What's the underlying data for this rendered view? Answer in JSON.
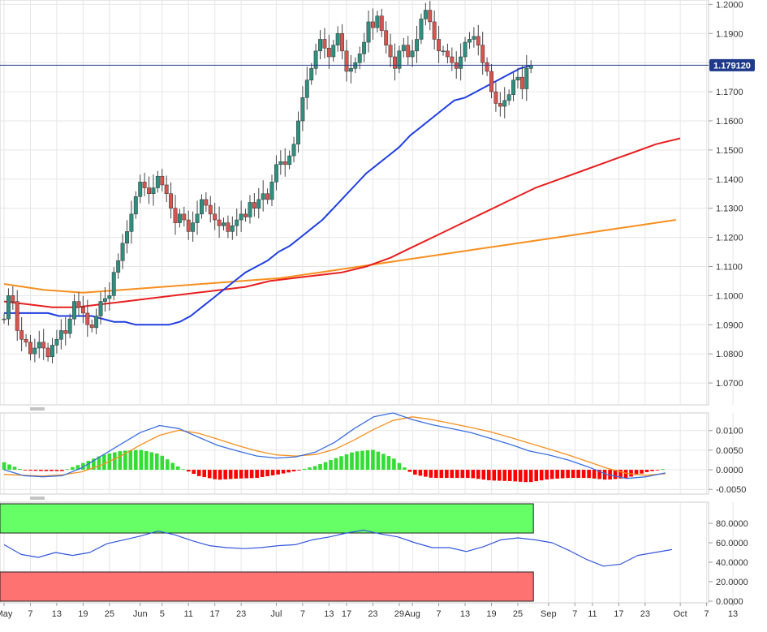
{
  "colors": {
    "up": "#2f8f7f",
    "down": "#d9534f",
    "sma50": "#1f3fe0",
    "sma100": "#e81f1f",
    "sma200": "#f78f1e",
    "current_line": "#1f3a8a",
    "macd_line": "#3b6fe0",
    "signal_line": "#f78f1e",
    "hist_pos": "#33dd33",
    "hist_neg": "#ff0000",
    "rsi_line": "#3355dd",
    "overbought_band": "#66ff66",
    "oversold_band": "#ff7272",
    "grid": "#e6e6e6",
    "axis_text": "#333333"
  },
  "price_axis": {
    "ticks": [
      "1.2000",
      "1.1900",
      "1.1800",
      "1.1700",
      "1.1600",
      "1.1500",
      "1.1400",
      "1.1300",
      "1.1200",
      "1.1100",
      "1.1000",
      "1.0900",
      "1.0800",
      "1.0700"
    ],
    "current_price_label": "1.179120"
  },
  "macd_axis": {
    "ticks": [
      "0.0100",
      "0.0050",
      "0.0000",
      "-0.0050"
    ]
  },
  "rsi_axis": {
    "ticks": [
      "80.0000",
      "60.0000",
      "40.0000",
      "20.0000",
      "0.0000"
    ]
  },
  "x_axis": {
    "labels": [
      {
        "text": "May",
        "t": 0
      },
      {
        "text": "7",
        "t": 6
      },
      {
        "text": "13",
        "t": 12
      },
      {
        "text": "19",
        "t": 18
      },
      {
        "text": "25",
        "t": 24
      },
      {
        "text": "Jun",
        "t": 31
      },
      {
        "text": "5",
        "t": 36
      },
      {
        "text": "11",
        "t": 42
      },
      {
        "text": "17",
        "t": 48
      },
      {
        "text": "23",
        "t": 54
      },
      {
        "text": "Jul",
        "t": 62
      },
      {
        "text": "7",
        "t": 68
      },
      {
        "text": "13",
        "t": 74
      },
      {
        "text": "17",
        "t": 78
      },
      {
        "text": "23",
        "t": 84
      },
      {
        "text": "29",
        "t": 90
      },
      {
        "text": "Aug",
        "t": 93
      },
      {
        "text": "7",
        "t": 99
      },
      {
        "text": "13",
        "t": 105
      },
      {
        "text": "19",
        "t": 111
      },
      {
        "text": "25",
        "t": 117
      },
      {
        "text": "Sep",
        "t": 124
      },
      {
        "text": "7",
        "t": 130
      },
      {
        "text": "11",
        "t": 134
      },
      {
        "text": "17",
        "t": 140
      },
      {
        "text": "23",
        "t": 146
      },
      {
        "text": "Oct",
        "t": 154
      },
      {
        "text": "7",
        "t": 160
      },
      {
        "text": "13",
        "t": 166
      }
    ]
  },
  "chart_data": [
    {
      "type": "candlestick",
      "title": "",
      "ylim": [
        1.0625,
        1.2015
      ],
      "grid": true,
      "current_price": 1.17912,
      "start_close": 1.092,
      "closes": [
        1.092,
        1.1,
        1.098,
        1.088,
        1.085,
        1.084,
        1.08,
        1.082,
        1.084,
        1.082,
        1.079,
        1.083,
        1.085,
        1.088,
        1.087,
        1.092,
        1.098,
        1.096,
        1.094,
        1.09,
        1.089,
        1.093,
        1.098,
        1.099,
        1.1,
        1.108,
        1.112,
        1.118,
        1.122,
        1.128,
        1.134,
        1.139,
        1.137,
        1.135,
        1.137,
        1.141,
        1.138,
        1.135,
        1.13,
        1.125,
        1.128,
        1.126,
        1.122,
        1.125,
        1.128,
        1.133,
        1.131,
        1.128,
        1.126,
        1.124,
        1.125,
        1.122,
        1.124,
        1.126,
        1.128,
        1.127,
        1.132,
        1.13,
        1.133,
        1.135,
        1.133,
        1.139,
        1.145,
        1.146,
        1.145,
        1.148,
        1.152,
        1.16,
        1.168,
        1.174,
        1.178,
        1.184,
        1.188,
        1.185,
        1.182,
        1.186,
        1.19,
        1.184,
        1.177,
        1.178,
        1.18,
        1.183,
        1.187,
        1.194,
        1.192,
        1.196,
        1.191,
        1.186,
        1.182,
        1.178,
        1.184,
        1.186,
        1.182,
        1.184,
        1.188,
        1.195,
        1.198,
        1.194,
        1.188,
        1.184,
        1.184,
        1.182,
        1.18,
        1.178,
        1.182,
        1.187,
        1.188,
        1.189,
        1.186,
        1.18,
        1.177,
        1.17,
        1.166,
        1.165,
        1.167,
        1.169,
        1.174,
        1.175,
        1.171,
        1.178,
        1.179
      ],
      "sma50": [
        1.094,
        1.094,
        1.094,
        1.094,
        1.094,
        1.093,
        1.093,
        1.093,
        1.093,
        1.092,
        1.091,
        1.091,
        1.09,
        1.09,
        1.09,
        1.09,
        1.091,
        1.093,
        1.096,
        1.099,
        1.102,
        1.105,
        1.108,
        1.11,
        1.112,
        1.115,
        1.117,
        1.12,
        1.123,
        1.126,
        1.13,
        1.134,
        1.138,
        1.142,
        1.145,
        1.148,
        1.151,
        1.155,
        1.158,
        1.161,
        1.164,
        1.167,
        1.168,
        1.17,
        1.172,
        1.174,
        1.176,
        1.178,
        1.179
      ],
      "sma50_t0": 0,
      "sma50_step": 2.5,
      "sma100": [
        1.098,
        1.097,
        1.096,
        1.096,
        1.097,
        1.098,
        1.099,
        1.1,
        1.101,
        1.102,
        1.103,
        1.105,
        1.106,
        1.107,
        1.108,
        1.11,
        1.113,
        1.117,
        1.121,
        1.125,
        1.129,
        1.133,
        1.137,
        1.14,
        1.143,
        1.146,
        1.149,
        1.152,
        1.154
      ],
      "sma100_t0": 0,
      "sma100_step": 5.5,
      "sma200": [
        1.104,
        1.102,
        1.101,
        1.102,
        1.103,
        1.104,
        1.105,
        1.106,
        1.108,
        1.11,
        1.112,
        1.114,
        1.116,
        1.118,
        1.12,
        1.122,
        1.124,
        1.126
      ],
      "sma200_t0": 0,
      "sma200_step": 9.0
    },
    {
      "type": "macd",
      "ylim": [
        -0.0062,
        0.0145
      ],
      "macd": [
        0.0,
        -0.0015,
        -0.0018,
        -0.0015,
        0.0005,
        0.0035,
        0.0065,
        0.0095,
        0.0113,
        0.0105,
        0.0083,
        0.0062,
        0.0048,
        0.0035,
        0.003,
        0.0033,
        0.0045,
        0.007,
        0.0105,
        0.0135,
        0.0145,
        0.0128,
        0.0115,
        0.0105,
        0.0095,
        0.008,
        0.0065,
        0.0048,
        0.0038,
        0.0025,
        0.0008,
        -0.0012,
        -0.0022,
        -0.0018,
        -0.0008
      ],
      "signal": [
        -0.0012,
        -0.0014,
        -0.0016,
        -0.0013,
        -0.0005,
        0.0012,
        0.0035,
        0.0063,
        0.0088,
        0.0101,
        0.0093,
        0.0078,
        0.0062,
        0.0048,
        0.0038,
        0.0035,
        0.0039,
        0.0052,
        0.0076,
        0.0103,
        0.0126,
        0.0135,
        0.0128,
        0.0118,
        0.0108,
        0.0097,
        0.0083,
        0.0068,
        0.0053,
        0.0038,
        0.0021,
        0.0004,
        -0.0009,
        -0.0014,
        -0.001
      ],
      "t_step": 4.43
    },
    {
      "type": "line",
      "name": "",
      "ylim": [
        0,
        100
      ],
      "upper_band": [
        70,
        100
      ],
      "lower_band": [
        0,
        30
      ],
      "values": [
        58,
        48,
        45,
        50,
        47,
        50,
        59,
        63,
        67,
        72,
        68,
        62,
        57,
        55,
        54,
        55,
        57,
        58,
        63,
        66,
        70,
        73,
        69,
        66,
        60,
        55,
        55,
        51,
        56,
        63,
        65,
        63,
        60,
        52,
        43,
        36,
        38,
        47,
        50,
        53
      ],
      "t_step": 3.9
    }
  ]
}
